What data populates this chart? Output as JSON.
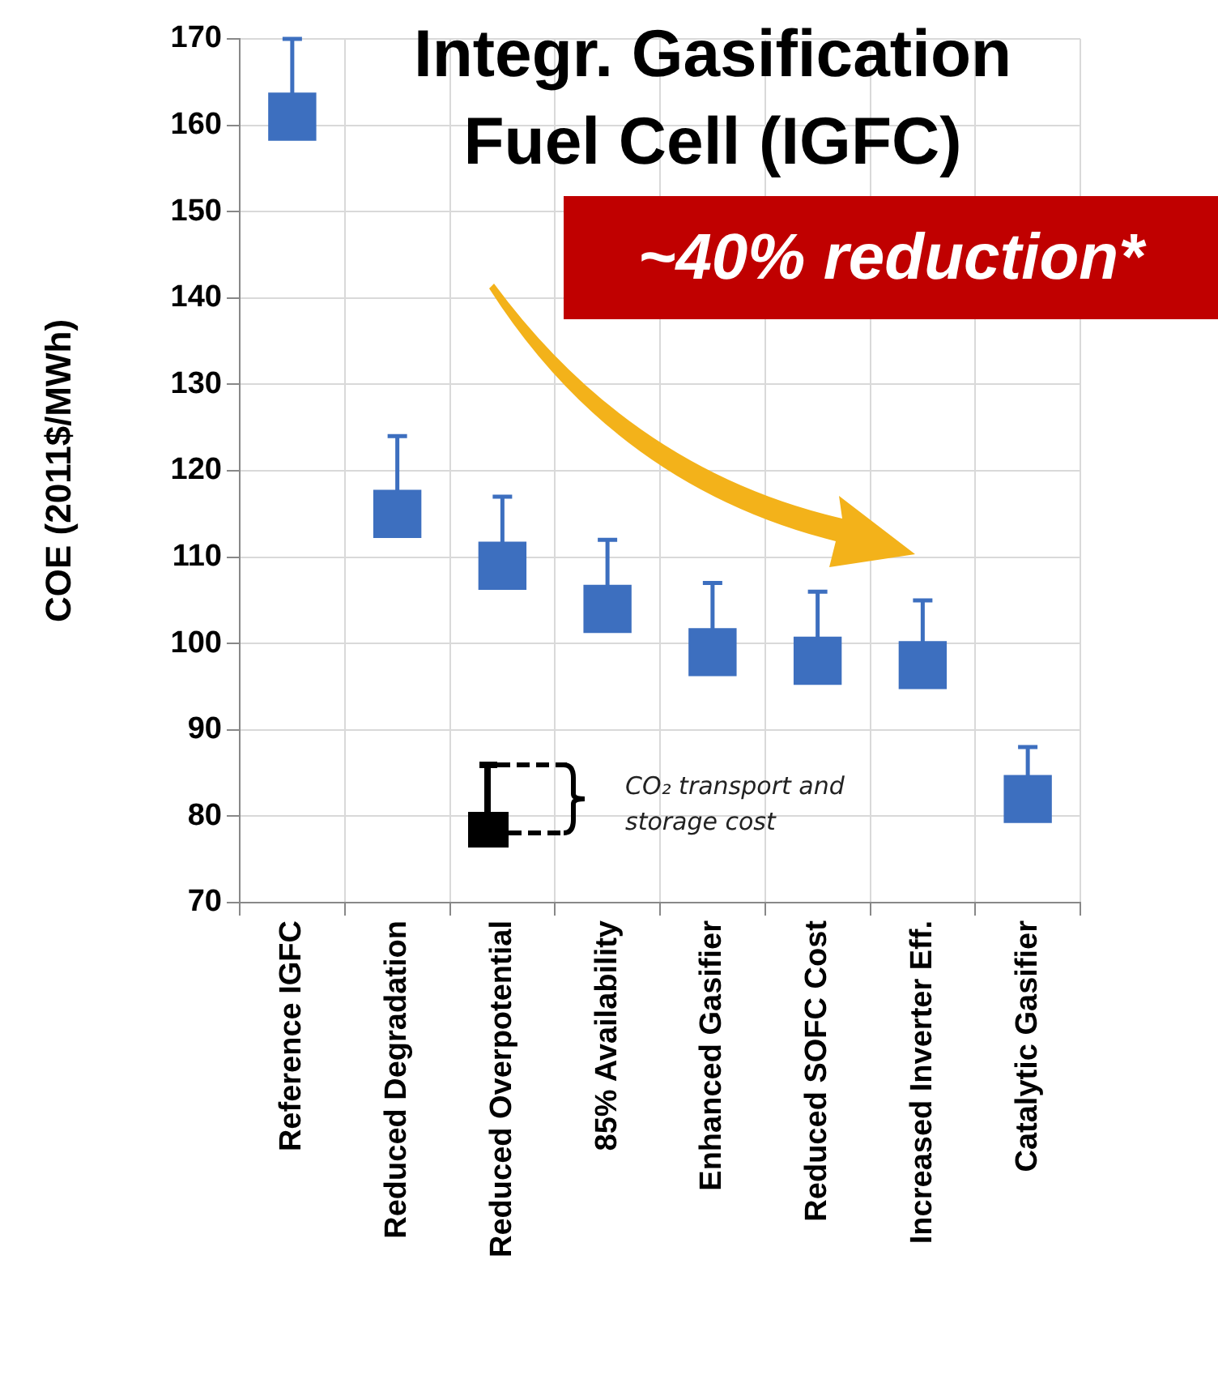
{
  "chart_data": {
    "type": "scatter",
    "title": "Integr. Gasification Fuel Cell (IGFC)",
    "ylabel": "COE (2011$/MWh)",
    "categories": [
      "Reference IGFC",
      "Reduced Degradation",
      "Reduced Overpotential",
      "85% Availability",
      "Enhanced Gasifier",
      "Reduced SOFC Cost",
      "Increased Inverter Eff.",
      "Catalytic Gasifier"
    ],
    "values": [
      161,
      115,
      109,
      104,
      99,
      98,
      97.5,
      82
    ],
    "errors": [
      [
        161,
        170
      ],
      [
        115,
        124
      ],
      [
        109,
        117
      ],
      [
        104,
        112
      ],
      [
        99,
        107
      ],
      [
        98,
        106
      ],
      [
        97.5,
        105
      ],
      [
        82,
        88
      ]
    ],
    "color": "#3d6fbf",
    "marker": "square",
    "grid": true,
    "legend": false,
    "ylim": [
      70,
      170
    ],
    "yticks": [
      70,
      80,
      90,
      100,
      110,
      120,
      130,
      140,
      150,
      160,
      170
    ],
    "annotations": [
      "~40% reduction*",
      "CO₂ transport and storage cost"
    ]
  }
}
